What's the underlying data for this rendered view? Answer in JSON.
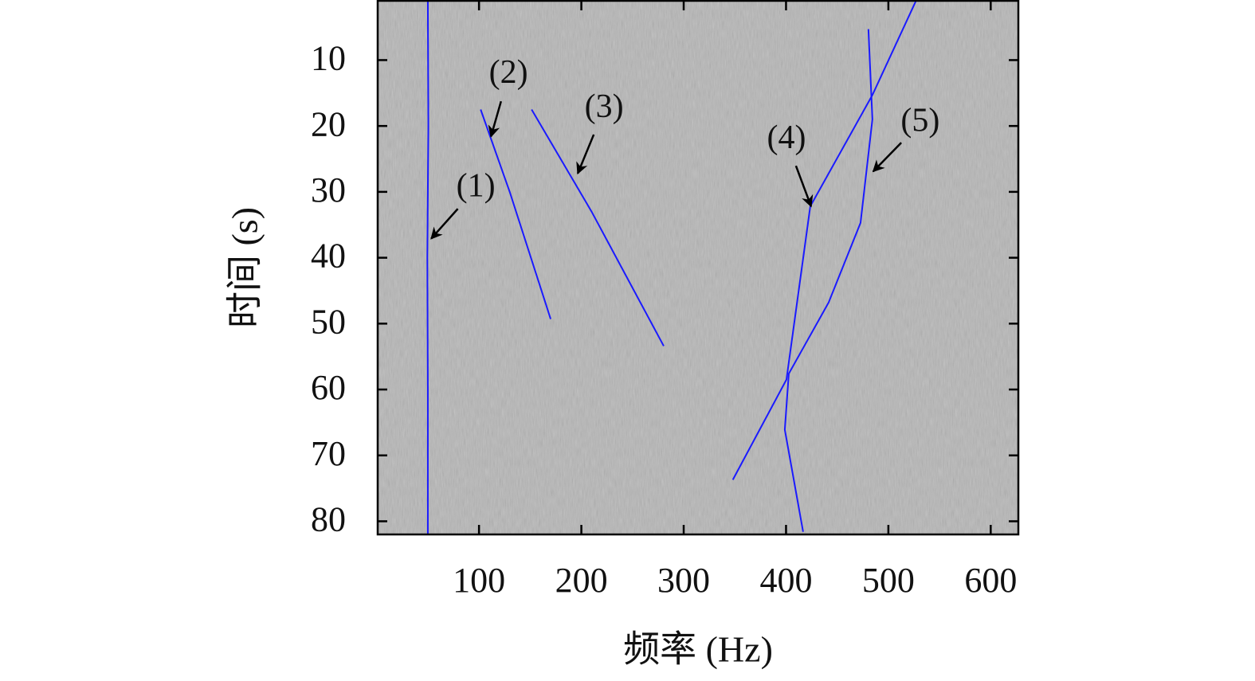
{
  "chart_data": {
    "type": "line",
    "xlabel": "频率 (Hz)",
    "ylabel": "时间 (s)",
    "xlim": [
      1,
      627
    ],
    "ylim": [
      1,
      82
    ],
    "y_inverted": true,
    "xticks": [
      100,
      200,
      300,
      400,
      500,
      600
    ],
    "yticks": [
      10,
      20,
      30,
      40,
      50,
      60,
      70,
      80
    ],
    "background": "#b6b6b6",
    "series": [
      {
        "color": "#1a1aff",
        "x": [
          50,
          50.5,
          49.5,
          50,
          50
        ],
        "y": [
          1,
          20,
          40,
          60,
          82
        ]
      },
      {
        "color": "#1a1aff",
        "x": [
          101.6,
          130,
          170
        ],
        "y": [
          17.5,
          30,
          49.3
        ]
      },
      {
        "color": "#1a1aff",
        "x": [
          151.4,
          210,
          280.5
        ],
        "y": [
          17.5,
          33,
          53.4
        ]
      },
      {
        "color": "#1a1aff",
        "x": [
          348,
          400.4,
          423.7,
          484.4,
          527
        ],
        "y": [
          73.7,
          58.5,
          32.2,
          15.3,
          1
        ]
      },
      {
        "color": "#1a1aff",
        "x": [
          480.5,
          484.4,
          472.8,
          441.6,
          402.7,
          398.8,
          416.7
        ],
        "y": [
          5.3,
          19,
          34.7,
          46.8,
          57.6,
          66.1,
          81.6
        ]
      }
    ],
    "annotations": [
      {
        "text": "(1)",
        "xy": [
          53.3,
          37.1
        ],
        "xytext": [
          96.9,
          29.5
        ]
      },
      {
        "text": "(2)",
        "xy": [
          111.7,
          21.6
        ],
        "xytext": [
          128.8,
          12.3
        ]
      },
      {
        "text": "(3)",
        "xy": [
          196.5,
          27.2
        ],
        "xytext": [
          222.2,
          17.5
        ]
      },
      {
        "text": "(4)",
        "xy": [
          424.5,
          32.2
        ],
        "xytext": [
          400.4,
          22.2
        ]
      },
      {
        "text": "(5)",
        "xy": [
          485.2,
          26.9
        ],
        "xytext": [
          531.1,
          19.6
        ]
      }
    ]
  }
}
